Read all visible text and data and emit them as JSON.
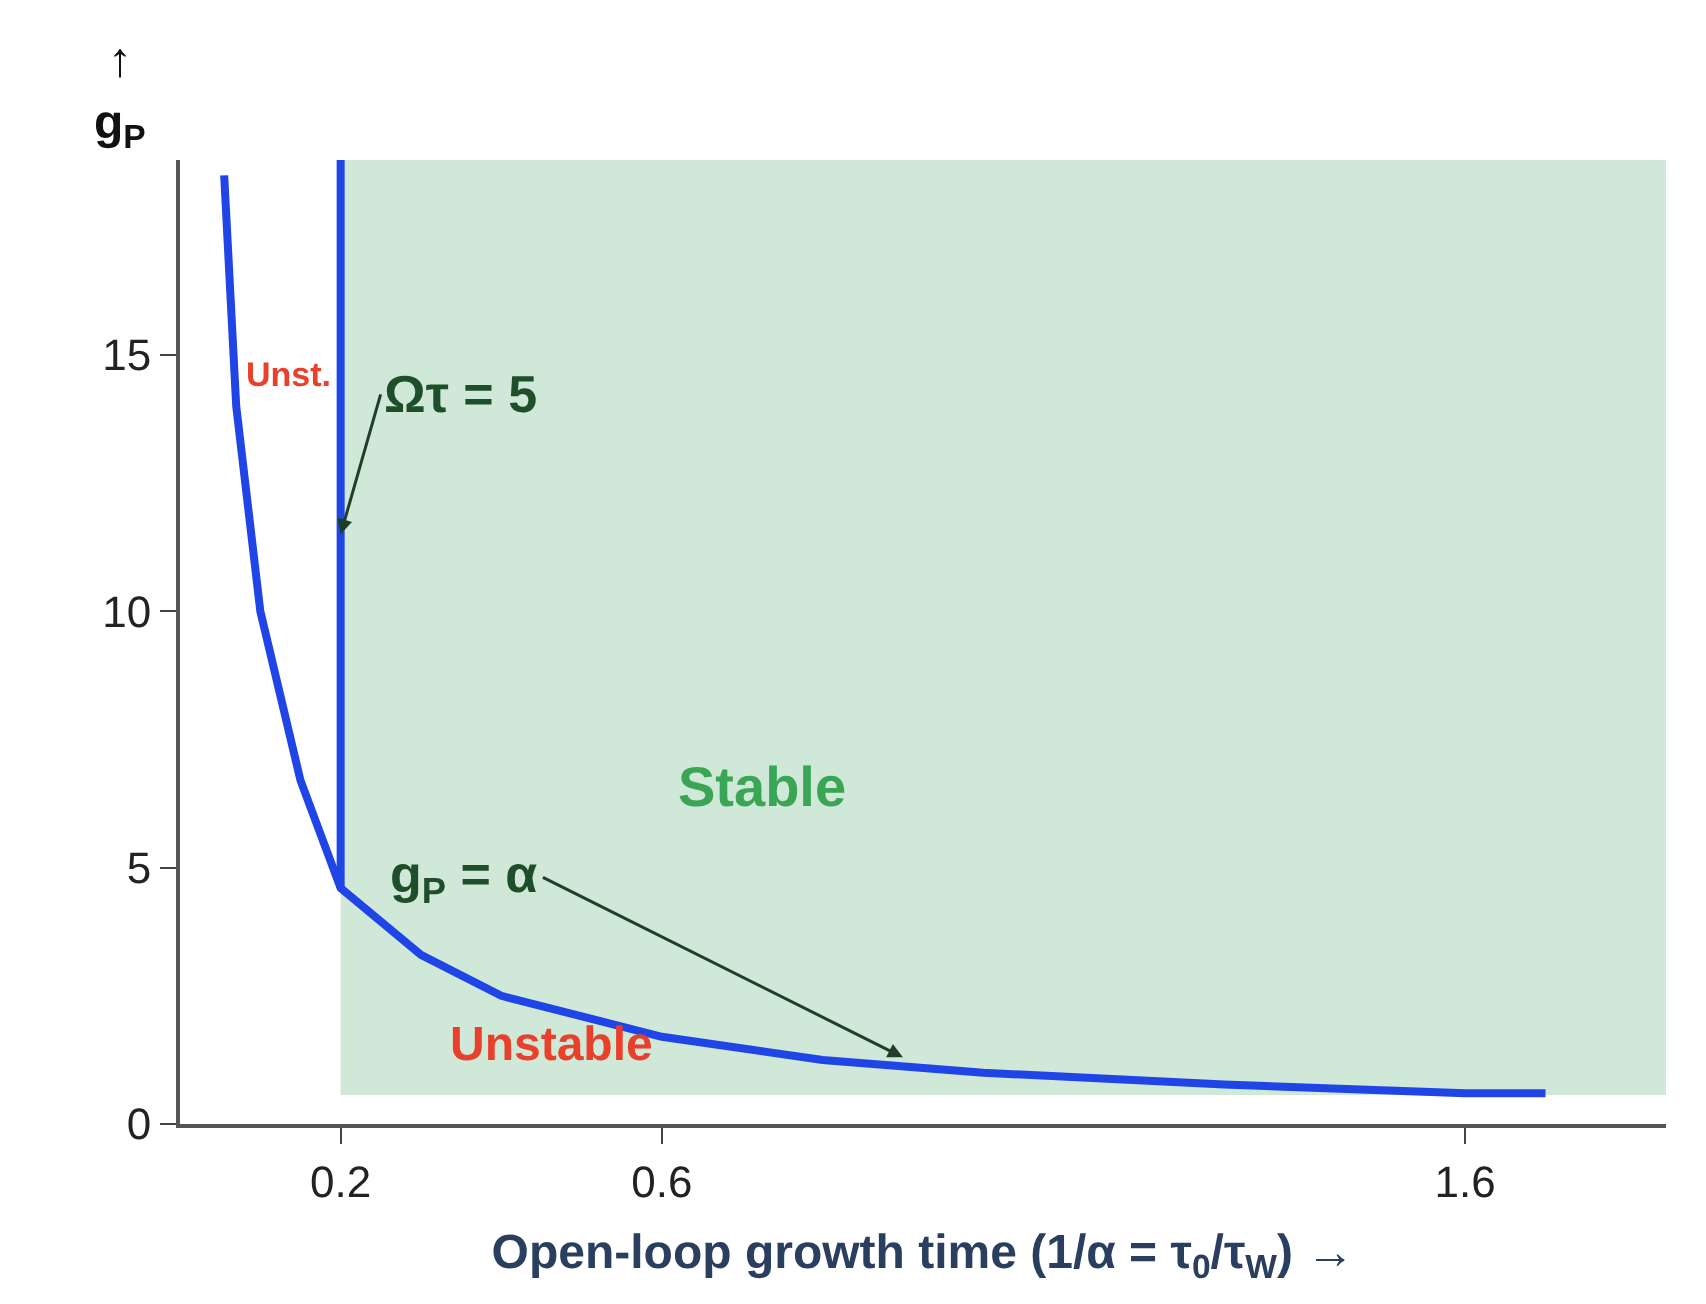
{
  "chart_data": {
    "type": "line",
    "xlabel": "Open-loop growth time (1/α = τ$_{0}$/τ$_{W}$) →",
    "ylabel": "↑\ng$_{P}$",
    "xlim": [
      0,
      1.85
    ],
    "xticks": [
      0.2,
      0.6,
      1.6
    ],
    "ylim": [
      0,
      18.8
    ],
    "yticks": [
      0,
      5,
      10,
      15
    ],
    "grid": false,
    "marker": "none",
    "line_style": "solid",
    "series": [
      {
        "color": "#1f45e6",
        "x": [
          0.055,
          0.07,
          0.1,
          0.15,
          0.2,
          0.3,
          0.4,
          0.6,
          0.8,
          1.0,
          1.3,
          1.6,
          1.7
        ],
        "values": [
          18.5,
          14,
          10,
          6.7,
          4.6,
          3.3,
          2.5,
          1.7,
          1.25,
          1.0,
          0.77,
          0.6,
          0.6
        ]
      },
      {
        "color": "#1f45e6",
        "x": [
          0.2,
          0.2
        ],
        "values": [
          4.6,
          18.8
        ]
      }
    ],
    "bands": [
      {
        "axis": "x",
        "from": 0.2,
        "to": 1.85,
        "label": "Stable",
        "color": "#cfe8d8"
      }
    ],
    "annotations": [
      "Unst.",
      "Unstable",
      {
        "text": "Ωτ = 5",
        "x": 0.2,
        "y": 11.5
      },
      {
        "text": "g$_{P}$ = α",
        "x": 0.9,
        "y": 1.3
      }
    ]
  }
}
